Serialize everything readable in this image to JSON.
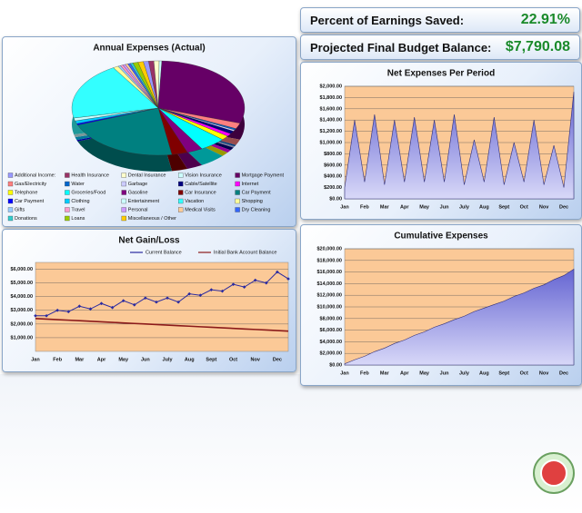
{
  "kpis": [
    {
      "label": "Percent of Earnings Saved:",
      "value": "22.91%"
    },
    {
      "label": "Projected Final Budget Balance:",
      "value": "$7,790.08"
    }
  ],
  "chart_data": [
    {
      "type": "pie",
      "title": "Annual Expenses  (Actual)",
      "categories": [
        "Additional Income:",
        "Health Insurance",
        "Dental Insurance",
        "Vision Insurance",
        "Mortgage Payment",
        "Gas/Electricity",
        "Water",
        "Garbage",
        "Cable/Satellite",
        "Internet",
        "Telephone",
        "Groceries/Food",
        "Gasoline",
        "Car Insurance",
        "Car Payment",
        "Car Payment",
        "Clothing",
        "Entertainment",
        "Vacation",
        "Shopping",
        "Gifts",
        "Travel",
        "Personal",
        "Medical Visits",
        "Dry Cleaning",
        "Donations",
        "Loans",
        "Miscellaneous / Other"
      ],
      "values": [
        1,
        1,
        1,
        0.5,
        30,
        2,
        0.5,
        0.5,
        1,
        1,
        1.5,
        5,
        3,
        3,
        22,
        0.5,
        1,
        1,
        20,
        1,
        0.5,
        0.5,
        0.5,
        0.5,
        0.5,
        0.5,
        1,
        1
      ],
      "colors": [
        "#9999ff",
        "#993366",
        "#ffffcc",
        "#ccffff",
        "#660066",
        "#ff8080",
        "#0066cc",
        "#ccccff",
        "#000080",
        "#ff00ff",
        "#ffff00",
        "#00ffff",
        "#800080",
        "#800000",
        "#008080",
        "#0000ff",
        "#00ccff",
        "#ccffff",
        "#33ffff",
        "#ffff99",
        "#99ccff",
        "#ff99cc",
        "#cc99ff",
        "#ffcc99",
        "#3366ff",
        "#33cccc",
        "#99cc00",
        "#ffcc00"
      ],
      "legend": "bottom"
    },
    {
      "type": "area",
      "title": "Net Expenses Per Period",
      "categories": [
        "Jan",
        null,
        "Feb",
        null,
        "Mar",
        null,
        "Apr",
        null,
        "May",
        null,
        "Jun",
        null,
        "July",
        null,
        "Aug",
        null,
        "Sept",
        null,
        "Oct",
        null,
        "Nov",
        null,
        "Dec",
        null
      ],
      "values": [
        200,
        1400,
        300,
        1500,
        250,
        1400,
        300,
        1450,
        300,
        1400,
        300,
        1500,
        250,
        1050,
        300,
        1450,
        250,
        1000,
        300,
        1400,
        250,
        950,
        200,
        1900
      ],
      "color": "#6464d2",
      "ylim": [
        0,
        2000
      ],
      "yticks": [
        {
          "value": 0,
          "label": "$0.00"
        },
        {
          "value": 200,
          "label": "$200.00"
        },
        {
          "value": 400,
          "label": "$400.00"
        },
        {
          "value": 600,
          "label": "$600.00"
        },
        {
          "value": 800,
          "label": "$800.00"
        },
        {
          "value": 1000,
          "label": "$1,000.00"
        },
        {
          "value": 1200,
          "label": "$1,200.00"
        },
        {
          "value": 1400,
          "label": "$1,400.00"
        },
        {
          "value": 1600,
          "label": "$1,600.00"
        },
        {
          "value": 1800,
          "label": "$1,800.00"
        },
        {
          "value": 2000,
          "label": "$2,000.00"
        }
      ],
      "grid": true
    },
    {
      "type": "line",
      "title": "Net Gain/Loss",
      "categories": [
        "Jan",
        null,
        "Feb",
        null,
        "Mar",
        null,
        "Apr",
        null,
        "May",
        null,
        "Jun",
        null,
        "July",
        null,
        "Aug",
        null,
        "Sept",
        null,
        "Oct",
        null,
        "Nov",
        null,
        "Dec",
        null
      ],
      "series": [
        {
          "name": "Current Balance",
          "color": "#2a2aa0",
          "marker": true,
          "values": [
            2600,
            2600,
            3000,
            2900,
            3300,
            3100,
            3500,
            3200,
            3700,
            3400,
            3900,
            3600,
            3900,
            3600,
            4200,
            4100,
            4500,
            4400,
            4900,
            4700,
            5200,
            5000,
            5800,
            5300
          ]
        },
        {
          "name": "Initial Bank Account Balance",
          "color": "#8b1a1a",
          "marker": false,
          "values": [
            2400,
            2360,
            2320,
            2280,
            2240,
            2200,
            2160,
            2120,
            2080,
            2040,
            2000,
            1960,
            1920,
            1880,
            1840,
            1800,
            1760,
            1720,
            1680,
            1640,
            1600,
            1560,
            1520,
            1480
          ]
        }
      ],
      "ylim": [
        0,
        6500
      ],
      "yticks": [
        {
          "value": 1000,
          "label": "$1,000.00"
        },
        {
          "value": 2000,
          "label": "$2,000.00"
        },
        {
          "value": 3000,
          "label": "$3,000.00"
        },
        {
          "value": 4000,
          "label": "$4,000.00"
        },
        {
          "value": 5000,
          "label": "$5,000.00"
        },
        {
          "value": 6000,
          "label": "$6,000.00"
        }
      ],
      "grid": true,
      "legend": "top"
    },
    {
      "type": "area",
      "title": "Cumulative Expenses",
      "categories": [
        "Jan",
        null,
        "Feb",
        null,
        "Mar",
        null,
        "Apr",
        null,
        "May",
        null,
        "Jun",
        null,
        "July",
        null,
        "Aug",
        null,
        "Sept",
        null,
        "Oct",
        null,
        "Nov",
        null,
        "Dec",
        null
      ],
      "values": [
        200,
        900,
        1500,
        2300,
        2900,
        3700,
        4300,
        5100,
        5700,
        6500,
        7100,
        7800,
        8400,
        9200,
        9800,
        10400,
        11000,
        11800,
        12400,
        13200,
        13800,
        14700,
        15400,
        16500
      ],
      "color": "#6464d2",
      "ylim": [
        0,
        20000
      ],
      "yticks": [
        {
          "value": 0,
          "label": "$0.00"
        },
        {
          "value": 2000,
          "label": "$2,000.00"
        },
        {
          "value": 4000,
          "label": "$4,000.00"
        },
        {
          "value": 6000,
          "label": "$6,000.00"
        },
        {
          "value": 8000,
          "label": "$8,000.00"
        },
        {
          "value": 10000,
          "label": "$10,000.00"
        },
        {
          "value": 12000,
          "label": "$12,000.00"
        },
        {
          "value": 14000,
          "label": "$14,000.00"
        },
        {
          "value": 16000,
          "label": "$16,000.00"
        },
        {
          "value": 18000,
          "label": "$18,000.00"
        },
        {
          "value": 20000,
          "label": "$20,000.00"
        }
      ],
      "grid": true
    }
  ]
}
